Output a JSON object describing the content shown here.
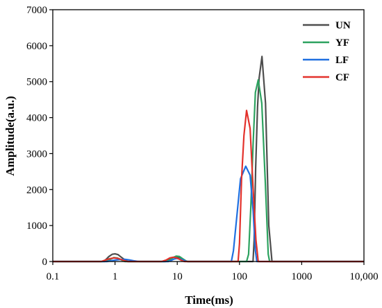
{
  "chart_data": {
    "type": "line",
    "title": "",
    "xlabel": "Time(ms)",
    "ylabel": "Amplitude(a.u.)",
    "x_scale": "log",
    "xlim": [
      0.1,
      10000
    ],
    "ylim": [
      0,
      7000
    ],
    "x_ticks": [
      0.1,
      1,
      10,
      100,
      1000,
      10000
    ],
    "x_tick_labels": [
      "0.1",
      "1",
      "10",
      "100",
      "1000",
      "10,000"
    ],
    "y_ticks": [
      0,
      1000,
      2000,
      3000,
      4000,
      5000,
      6000,
      7000
    ],
    "y_tick_labels": [
      "0",
      "1000",
      "2000",
      "3000",
      "4000",
      "5000",
      "6000",
      "7000"
    ],
    "grid": false,
    "legend_position": "top-right",
    "series": [
      {
        "name": "UN",
        "color": "#4d4d4d",
        "points": [
          [
            0.1,
            0
          ],
          [
            0.62,
            0
          ],
          [
            0.7,
            40
          ],
          [
            0.8,
            140
          ],
          [
            0.9,
            200
          ],
          [
            1.0,
            215
          ],
          [
            1.12,
            190
          ],
          [
            1.26,
            120
          ],
          [
            1.45,
            40
          ],
          [
            1.6,
            0
          ],
          [
            6.3,
            0
          ],
          [
            7.2,
            40
          ],
          [
            8.2,
            100
          ],
          [
            9.3,
            130
          ],
          [
            10.5,
            110
          ],
          [
            12,
            60
          ],
          [
            13.5,
            10
          ],
          [
            14.5,
            0
          ],
          [
            165,
            0
          ],
          [
            172,
            600
          ],
          [
            182,
            2600
          ],
          [
            195,
            4300
          ],
          [
            207,
            5100
          ],
          [
            230,
            5700
          ],
          [
            262,
            4400
          ],
          [
            296,
            1000
          ],
          [
            333,
            0
          ],
          [
            10000,
            0
          ]
        ]
      },
      {
        "name": "YF",
        "color": "#2ca25f",
        "points": [
          [
            0.1,
            0
          ],
          [
            0.68,
            0
          ],
          [
            0.76,
            20
          ],
          [
            0.86,
            70
          ],
          [
            0.96,
            110
          ],
          [
            1.08,
            100
          ],
          [
            1.22,
            60
          ],
          [
            1.38,
            10
          ],
          [
            1.45,
            0
          ],
          [
            6.6,
            0
          ],
          [
            7.6,
            40
          ],
          [
            8.6,
            110
          ],
          [
            9.6,
            150
          ],
          [
            10.8,
            140
          ],
          [
            12.2,
            80
          ],
          [
            13.8,
            20
          ],
          [
            14.8,
            0
          ],
          [
            130,
            0
          ],
          [
            140,
            200
          ],
          [
            152,
            1500
          ],
          [
            166,
            3300
          ],
          [
            180,
            4700
          ],
          [
            200,
            5050
          ],
          [
            228,
            4400
          ],
          [
            260,
            2200
          ],
          [
            290,
            200
          ],
          [
            305,
            0
          ],
          [
            10000,
            0
          ]
        ]
      },
      {
        "name": "LF",
        "color": "#1f6fe0",
        "points": [
          [
            0.1,
            0
          ],
          [
            0.74,
            0
          ],
          [
            0.86,
            20
          ],
          [
            1.0,
            40
          ],
          [
            1.2,
            55
          ],
          [
            1.45,
            60
          ],
          [
            1.7,
            45
          ],
          [
            2.0,
            20
          ],
          [
            2.3,
            5
          ],
          [
            2.5,
            0
          ],
          [
            7.2,
            0
          ],
          [
            8.0,
            30
          ],
          [
            8.9,
            70
          ],
          [
            9.8,
            85
          ],
          [
            11,
            75
          ],
          [
            12.5,
            40
          ],
          [
            14,
            5
          ],
          [
            14.8,
            0
          ],
          [
            74,
            0
          ],
          [
            80,
            300
          ],
          [
            90,
            1200
          ],
          [
            104,
            2300
          ],
          [
            126,
            2650
          ],
          [
            148,
            2400
          ],
          [
            166,
            1400
          ],
          [
            180,
            300
          ],
          [
            190,
            0
          ],
          [
            10000,
            0
          ]
        ]
      },
      {
        "name": "CF",
        "color": "#e3312b",
        "points": [
          [
            0.1,
            0
          ],
          [
            0.6,
            0
          ],
          [
            0.7,
            40
          ],
          [
            0.82,
            80
          ],
          [
            0.96,
            100
          ],
          [
            1.1,
            90
          ],
          [
            1.28,
            50
          ],
          [
            1.5,
            10
          ],
          [
            1.6,
            0
          ],
          [
            5.6,
            0
          ],
          [
            6.6,
            40
          ],
          [
            7.6,
            100
          ],
          [
            8.6,
            120
          ],
          [
            9.8,
            100
          ],
          [
            11.2,
            50
          ],
          [
            12.6,
            5
          ],
          [
            13.2,
            0
          ],
          [
            95,
            0
          ],
          [
            100,
            500
          ],
          [
            108,
            2300
          ],
          [
            118,
            3500
          ],
          [
            130,
            4200
          ],
          [
            148,
            3700
          ],
          [
            166,
            2000
          ],
          [
            184,
            600
          ],
          [
            200,
            0
          ],
          [
            10000,
            0
          ]
        ]
      }
    ]
  }
}
